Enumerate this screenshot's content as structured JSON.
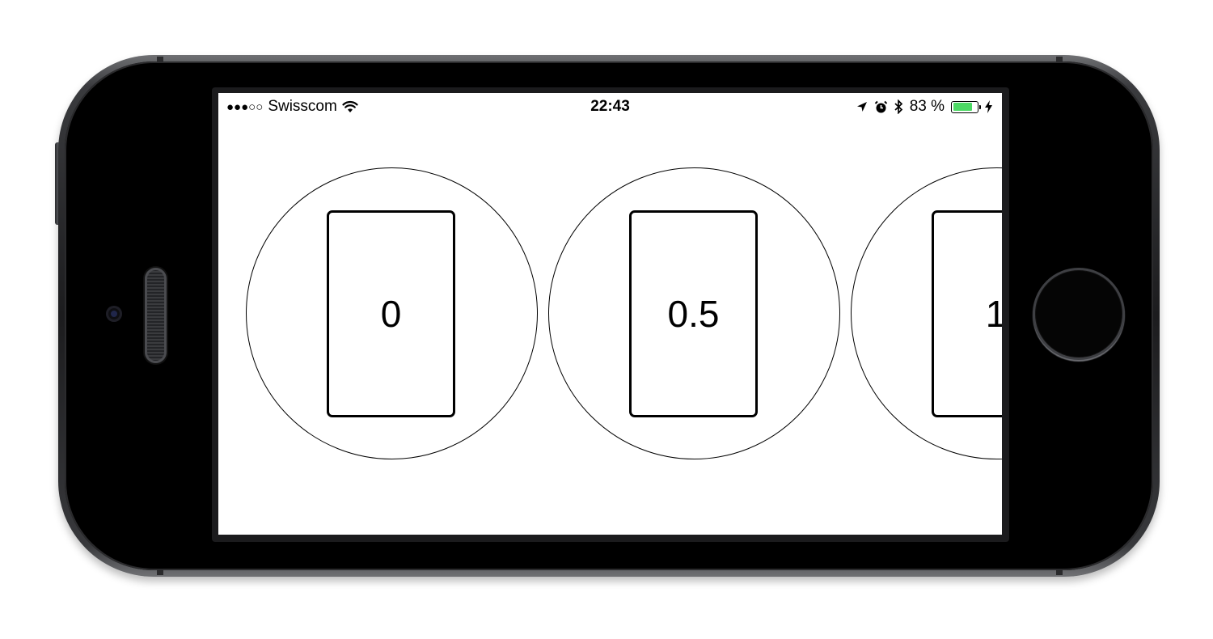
{
  "status_bar": {
    "signal_dots": "●●●○○",
    "carrier": "Swisscom",
    "time": "22:43",
    "battery_percent": "83 %",
    "battery_level": 0.83,
    "battery_color": "#4cd964",
    "icons": [
      "wifi-icon",
      "location-arrow-icon",
      "alarm-icon",
      "bluetooth-icon",
      "charging-bolt-icon"
    ]
  },
  "carousel": {
    "items": [
      {
        "label": "0"
      },
      {
        "label": "0.5"
      },
      {
        "label": "1"
      }
    ]
  }
}
